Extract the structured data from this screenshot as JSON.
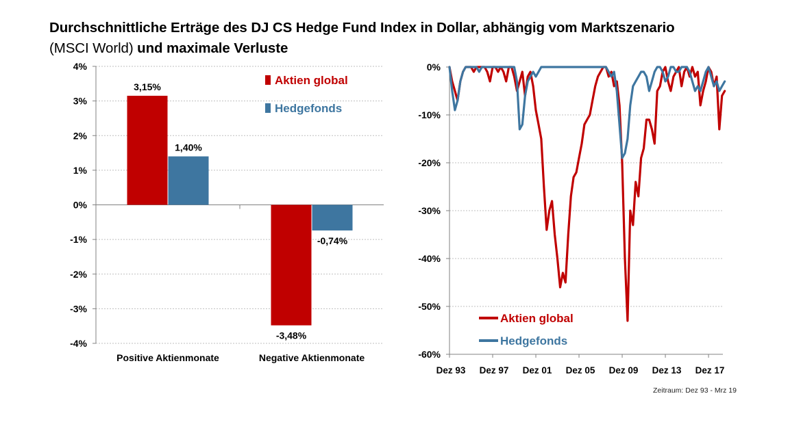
{
  "title": {
    "line1": "Durchschnittliche Erträge des DJ CS Hedge Fund Index in Dollar, abhängig vom Marktszenario",
    "line2_regular": "(MSCI World)",
    "line2_bold": "und maximale Verluste"
  },
  "footnote": "Zeitraum: Dez 93 - Mrz 19",
  "colors": {
    "aktien": "#c00000",
    "hedge": "#3e76a0",
    "grid": "#bfbfbf",
    "axis": "#808080"
  },
  "chart_data": [
    {
      "type": "bar",
      "categories": [
        "Positive Aktienmonate",
        "Negative Aktienmonate"
      ],
      "series": [
        {
          "name": "Aktien global",
          "values": [
            3.15,
            -3.48
          ],
          "labels": [
            "3,15%",
            "-3,48%"
          ]
        },
        {
          "name": "Hedgefonds",
          "values": [
            1.4,
            -0.74
          ],
          "labels": [
            "1,40%",
            "-0,74%"
          ]
        }
      ],
      "ylim": [
        -4,
        4
      ],
      "yticks": [
        4,
        3,
        2,
        1,
        0,
        -1,
        -2,
        -3,
        -4
      ],
      "ytick_labels": [
        "4%",
        "3%",
        "2%",
        "1%",
        "0%",
        "-1%",
        "-2%",
        "-3%",
        "-4%"
      ],
      "grid": true,
      "legend": "top-right"
    },
    {
      "type": "line",
      "x_start_year": 1993.92,
      "x_step": 0.25,
      "xlim": [
        1993.92,
        2019.25
      ],
      "xticks": [
        1993.92,
        1997.92,
        2001.92,
        2005.92,
        2009.92,
        2013.92,
        2017.92
      ],
      "xtick_labels": [
        "Dez 93",
        "Dez 97",
        "Dez 01",
        "Dez 05",
        "Dez 09",
        "Dez 13",
        "Dez 17"
      ],
      "ylim": [
        -60,
        0
      ],
      "yticks": [
        0,
        -10,
        -20,
        -30,
        -40,
        -50,
        -60
      ],
      "ytick_labels": [
        "0%",
        "-10%",
        "-20%",
        "-30%",
        "-40%",
        "-50%",
        "-60%"
      ],
      "grid": true,
      "legend": "bottom-left",
      "series": [
        {
          "name": "Aktien global",
          "values": [
            0,
            -3,
            -5,
            -7,
            -3,
            -1,
            0,
            0,
            0,
            -1,
            0,
            0,
            0,
            0,
            -1,
            -3,
            0,
            0,
            -1,
            0,
            -1,
            -3,
            0,
            0,
            -2,
            -5,
            -3,
            -1,
            -6,
            -2,
            -1,
            -4,
            -9,
            -12,
            -15,
            -25,
            -34,
            -30,
            -28,
            -35,
            -40,
            -46,
            -43,
            -45,
            -35,
            -27,
            -23,
            -22,
            -19,
            -16,
            -12,
            -11,
            -10,
            -7,
            -4,
            -2,
            -1,
            0,
            0,
            -2,
            -1,
            -4,
            -3,
            -8,
            -20,
            -40,
            -53,
            -30,
            -33,
            -24,
            -27,
            -19,
            -17,
            -11,
            -11,
            -13,
            -16,
            -5,
            -4,
            -1,
            0,
            -3,
            -5,
            -2,
            -1,
            0,
            -4,
            -1,
            0,
            -2,
            0,
            -2,
            -1,
            -8,
            -5,
            -3,
            0,
            -1,
            -4,
            -2,
            -13,
            -6,
            -5
          ]
        },
        {
          "name": "Hedgefonds",
          "values": [
            0,
            -5,
            -9,
            -7,
            -3,
            -1,
            0,
            0,
            0,
            0,
            0,
            -1,
            0,
            0,
            0,
            0,
            0,
            0,
            0,
            0,
            0,
            0,
            0,
            0,
            0,
            -3,
            -13,
            -12,
            -6,
            -3,
            -2,
            -1,
            -2,
            -1,
            0,
            0,
            0,
            0,
            0,
            0,
            0,
            0,
            0,
            0,
            0,
            0,
            0,
            0,
            0,
            0,
            0,
            0,
            0,
            0,
            0,
            0,
            0,
            0,
            0,
            -1,
            -2,
            -1,
            -5,
            -12,
            -19,
            -18,
            -15,
            -8,
            -4,
            -3,
            -2,
            -1,
            -1,
            -2,
            -5,
            -3,
            -1,
            0,
            0,
            -1,
            -3,
            -2,
            0,
            0,
            -1,
            -1,
            0,
            0,
            0,
            -1,
            -3,
            -5,
            -4,
            -5,
            -3,
            -1,
            0,
            -2,
            -4,
            -3,
            -5,
            -4,
            -3
          ]
        }
      ]
    }
  ],
  "legend_left": {
    "aktien": "Aktien global",
    "hedge": "Hedgefonds"
  },
  "legend_right": {
    "aktien": "Aktien global",
    "hedge": "Hedgefonds"
  }
}
